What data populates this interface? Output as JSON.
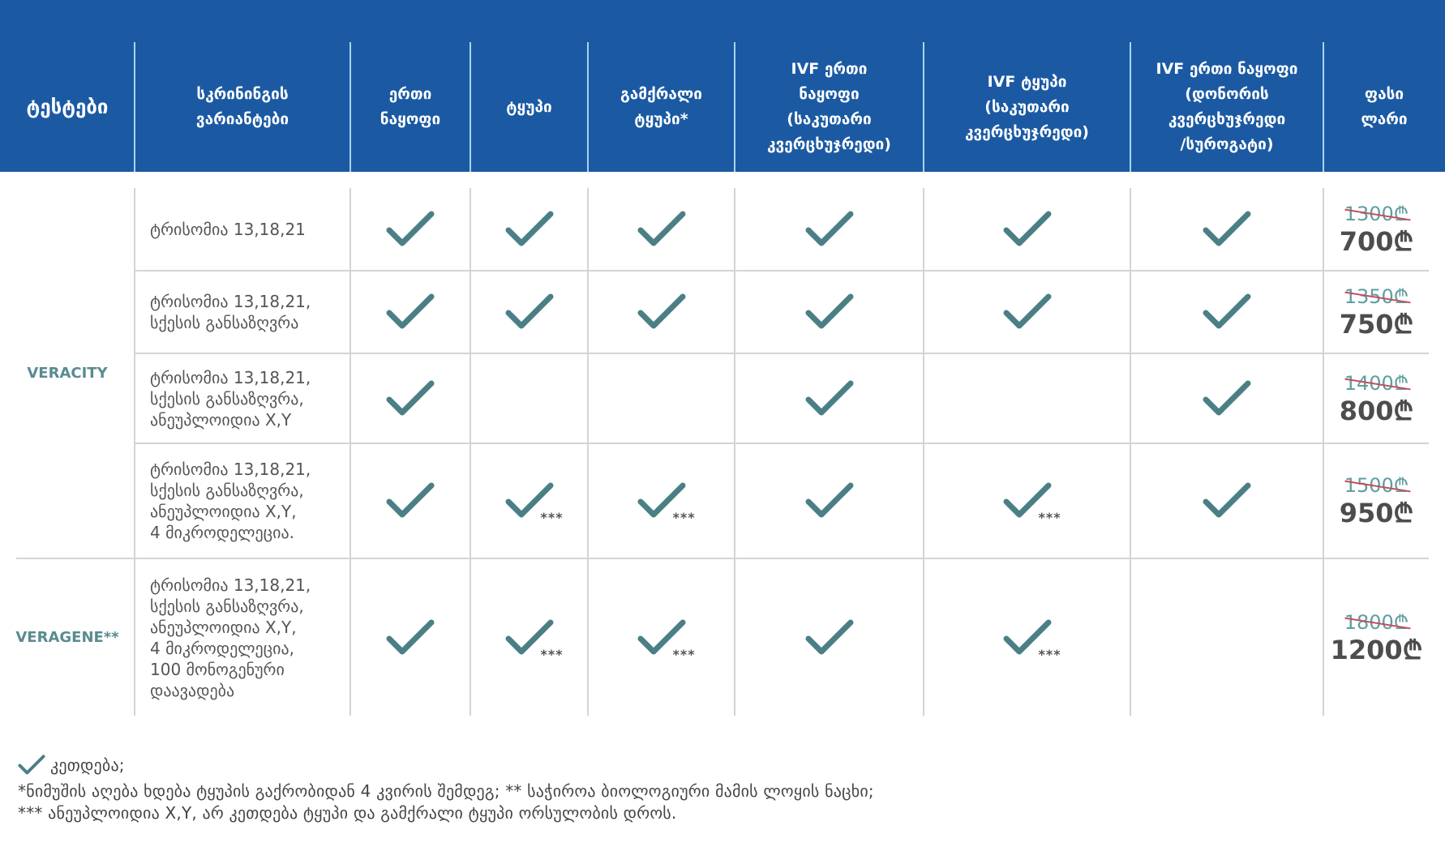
{
  "header": {
    "columns": [
      {
        "label": "ტესტები"
      },
      {
        "label": "სკრინინგის\nვარიანტები"
      },
      {
        "label": "ერთი\nნაყოფი"
      },
      {
        "label": "ტყუპი"
      },
      {
        "label": "გამქრალი\nტყუპი*"
      },
      {
        "label": "IVF ერთი\nნაყოფი\n(საკუთარი\nკვერცხუჯრედი)"
      },
      {
        "label": "IVF ტყუპი\n(საკუთარი\nკვერცხუჯრედი)"
      },
      {
        "label": "IVF ერთი ნაყოფი\n(დონორის\nკვერცხუჯრედი\n/სუროგატი)"
      },
      {
        "label": "ფასი\nლარი"
      }
    ]
  },
  "groups": [
    {
      "name": "VERACITY"
    },
    {
      "name": "VERAGENE**"
    }
  ],
  "rows": [
    {
      "description": "ტრისომია 13,18,21",
      "checks": [
        "check",
        "check",
        "check",
        "check",
        "check",
        "check"
      ],
      "old_price": "1300₾",
      "new_price": "700₾"
    },
    {
      "description": "ტრისომია 13,18,21,\nსქესის განსაზღვრა",
      "checks": [
        "check",
        "check",
        "check",
        "check",
        "check",
        "check"
      ],
      "old_price": "1350₾",
      "new_price": "750₾"
    },
    {
      "description": "ტრისომია 13,18,21,\nსქესის განსაზღვრა,\nანეუპლოიდია X,Y",
      "checks": [
        "check",
        "none",
        "none",
        "check",
        "none",
        "check"
      ],
      "old_price": "1400₾",
      "new_price": "800₾"
    },
    {
      "description": "ტრისომია 13,18,21,\nსქესის განსაზღვრა,\nანეუპლოიდია X,Y,\n4 მიკროდელეცია.",
      "checks": [
        "check",
        "check***",
        "check***",
        "check",
        "check***",
        "check"
      ],
      "old_price": "1500₾",
      "new_price": "950₾"
    },
    {
      "description": "ტრისომია 13,18,21,\nსქესის განსაზღვრა,\nანეუპლოიდია X,Y,\n4 მიკროდელეცია,\n100 მონოგენური\nდაავადება",
      "checks": [
        "check",
        "check***",
        "check***",
        "check",
        "check***",
        "none"
      ],
      "old_price": "1800₾",
      "new_price": "1200₾"
    }
  ],
  "marker": "***",
  "footnotes": {
    "legend_icon": "check-icon",
    "legend": "კეთდება;",
    "line1": "*ნიმუშის აღება ხდება ტყუპის გაქრობიდან 4 კვირის შემდეგ;  ** საჭიროა ბიოლოგიური მამის ლოყის ნაცხი;",
    "line2": "*** ანეუპლოიდია X,Y, არ კეთდება ტყუპი და გამქრალი ტყუპი ორსულობის დროს."
  },
  "colors": {
    "header_bg": "#1b5aa3",
    "check": "#4b7f86",
    "brand": "#5a8b8f",
    "old_price": "#5f9ea0",
    "strike": "#c24f5e",
    "new_price": "#4d4d4d"
  }
}
